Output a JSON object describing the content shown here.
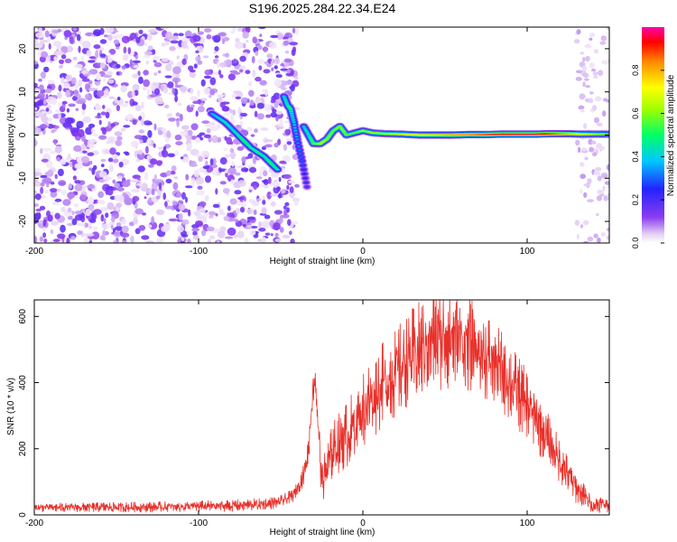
{
  "title": "S196.2025.284.22.34.E24",
  "chart_data": [
    {
      "type": "heatmap",
      "name": "spectrogram",
      "xlabel": "Height of straight line (km)",
      "ylabel": "Frequency (Hz)",
      "xlim": [
        -200,
        150
      ],
      "ylim": [
        -25,
        25
      ],
      "xticks": [
        -200,
        -100,
        0,
        100
      ],
      "yticks": [
        -20,
        -10,
        0,
        10,
        20
      ],
      "colorbar": {
        "label": "Normalized spectral amplitude",
        "range": [
          0,
          1
        ],
        "ticks": [
          0.0,
          0.2,
          0.4,
          0.6,
          0.8
        ]
      },
      "noise_region_x": [
        -200,
        -50
      ],
      "noise_region_right_x": [
        130,
        150
      ],
      "ridge": [
        {
          "x": -92,
          "y": 5,
          "a": 0.35
        },
        {
          "x": -88,
          "y": 4,
          "a": 0.4
        },
        {
          "x": -84,
          "y": 3,
          "a": 0.45
        },
        {
          "x": -80,
          "y": 1.5,
          "a": 0.4
        },
        {
          "x": -76,
          "y": 0,
          "a": 0.45
        },
        {
          "x": -72,
          "y": -1.5,
          "a": 0.5
        },
        {
          "x": -68,
          "y": -3,
          "a": 0.45
        },
        {
          "x": -64,
          "y": -4,
          "a": 0.5
        },
        {
          "x": -60,
          "y": -5,
          "a": 0.45
        },
        {
          "x": -56,
          "y": -6.5,
          "a": 0.5
        },
        {
          "x": -52,
          "y": -8,
          "a": 0.45
        },
        {
          "x": -48,
          "y": 9,
          "a": 0.4
        },
        {
          "x": -46,
          "y": 7,
          "a": 0.45
        },
        {
          "x": -44,
          "y": 6,
          "a": 0.5
        },
        {
          "x": -42,
          "y": 3,
          "a": 0.4
        },
        {
          "x": -40,
          "y": -1,
          "a": 0.35
        },
        {
          "x": -37,
          "y": -6,
          "a": 0.3
        },
        {
          "x": -34,
          "y": -12,
          "a": 0.2
        },
        {
          "x": -36,
          "y": 2,
          "a": 0.4
        },
        {
          "x": -33,
          "y": 0,
          "a": 0.45
        },
        {
          "x": -30,
          "y": -2,
          "a": 0.55
        },
        {
          "x": -26,
          "y": -2,
          "a": 0.65
        },
        {
          "x": -22,
          "y": -1,
          "a": 0.6
        },
        {
          "x": -18,
          "y": 1,
          "a": 0.55
        },
        {
          "x": -14,
          "y": 2,
          "a": 0.6
        },
        {
          "x": -10,
          "y": 0,
          "a": 0.55
        },
        {
          "x": -5,
          "y": 0.5,
          "a": 0.55
        },
        {
          "x": 0,
          "y": 1,
          "a": 0.6
        },
        {
          "x": 6,
          "y": 0.5,
          "a": 0.62
        },
        {
          "x": 14,
          "y": 0.3,
          "a": 0.65
        },
        {
          "x": 24,
          "y": 0.2,
          "a": 0.68
        },
        {
          "x": 34,
          "y": 0,
          "a": 0.72
        },
        {
          "x": 44,
          "y": 0,
          "a": 0.75
        },
        {
          "x": 54,
          "y": 0,
          "a": 0.8
        },
        {
          "x": 64,
          "y": 0.1,
          "a": 0.82
        },
        {
          "x": 74,
          "y": 0.1,
          "a": 0.88
        },
        {
          "x": 84,
          "y": 0.2,
          "a": 0.92
        },
        {
          "x": 94,
          "y": 0.2,
          "a": 0.95
        },
        {
          "x": 104,
          "y": 0.2,
          "a": 0.96
        },
        {
          "x": 114,
          "y": 0.3,
          "a": 0.9
        },
        {
          "x": 124,
          "y": 0.3,
          "a": 0.8
        },
        {
          "x": 134,
          "y": 0.2,
          "a": 0.7
        },
        {
          "x": 144,
          "y": 0.2,
          "a": 0.6
        },
        {
          "x": 150,
          "y": 0.2,
          "a": 0.55
        }
      ]
    },
    {
      "type": "line",
      "name": "snr",
      "xlabel": "Height of straight line (km)",
      "ylabel": "SNR (10 * v/v)",
      "xlim": [
        -200,
        150
      ],
      "ylim": [
        0,
        650
      ],
      "xticks": [
        -200,
        -100,
        0,
        100
      ],
      "yticks": [
        0,
        200,
        400,
        600
      ],
      "color": "#e8302a",
      "envelope": {
        "x": [
          -200,
          -120,
          -80,
          -60,
          -50,
          -42,
          -36,
          -33,
          -31,
          -29,
          -27,
          -25,
          -22,
          -18,
          -12,
          -5,
          0,
          10,
          20,
          30,
          40,
          50,
          60,
          70,
          80,
          90,
          100,
          110,
          120,
          130,
          140,
          150
        ],
        "y": [
          22,
          24,
          28,
          32,
          40,
          60,
          120,
          200,
          350,
          420,
          250,
          100,
          140,
          200,
          230,
          270,
          320,
          380,
          430,
          480,
          520,
          540,
          530,
          500,
          460,
          400,
          330,
          250,
          160,
          80,
          30,
          35
        ]
      },
      "oscillation": {
        "x": [
          -200,
          -40,
          -30,
          -20,
          0,
          50,
          100,
          140,
          150
        ],
        "y": [
          10,
          15,
          40,
          60,
          90,
          120,
          80,
          20,
          20
        ]
      }
    }
  ]
}
